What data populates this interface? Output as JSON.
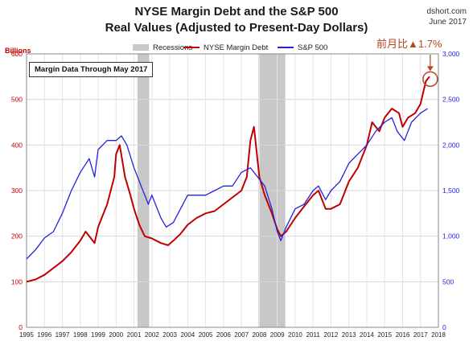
{
  "header": {
    "title_line1": "NYSE Margin Debt and the S&P 500",
    "title_line2": "Real Values (Adjusted to Present-Day Dollars)",
    "source": "dshort.com",
    "date": "June 2017"
  },
  "chart_data": {
    "type": "line",
    "title": "NYSE Margin Debt and the S&P 500",
    "subtitle": "Real Values (Adjusted to Present-Day Dollars)",
    "left_axis_label": "Billions",
    "left_ylim": [
      0,
      600
    ],
    "left_ticks": [
      0,
      100,
      200,
      300,
      400,
      500,
      600
    ],
    "right_ylim": [
      0,
      3000
    ],
    "right_ticks": [
      0,
      500,
      1000,
      1500,
      2000,
      2500,
      3000
    ],
    "right_tick_labels": [
      "0",
      "500",
      "1,000",
      "1,500",
      "2,000",
      "2,500",
      "3,000"
    ],
    "xlim": [
      1995,
      2018
    ],
    "x_ticks": [
      1995,
      1996,
      1997,
      1998,
      1999,
      2000,
      2001,
      2002,
      2003,
      2004,
      2005,
      2006,
      2007,
      2008,
      2009,
      2010,
      2011,
      2012,
      2013,
      2014,
      2015,
      2016,
      2017,
      2018
    ],
    "recessions": [
      [
        2001.2,
        2001.85
      ],
      [
        2007.95,
        2009.45
      ]
    ],
    "grid": true,
    "legend_position": "top",
    "legend": [
      {
        "label": "Recessions",
        "color": "#c8c8c8"
      },
      {
        "label": "NYSE Margin Debt",
        "color": "#c00000"
      },
      {
        "label": "S&P 500",
        "color": "#2222dd"
      }
    ],
    "inset_label": "Margin Data Through May 2017",
    "annotation": "前月比▲1.7%",
    "series": [
      {
        "name": "NYSE Margin Debt",
        "axis": "left",
        "color": "#c00000",
        "x": [
          1995.0,
          1995.5,
          1996.0,
          1996.5,
          1997.0,
          1997.5,
          1998.0,
          1998.3,
          1998.8,
          1999.0,
          1999.5,
          1999.9,
          2000.0,
          2000.2,
          2000.5,
          2000.8,
          2001.0,
          2001.3,
          2001.6,
          2002.0,
          2002.5,
          2002.9,
          2003.2,
          2003.6,
          2004.0,
          2004.5,
          2005.0,
          2005.5,
          2006.0,
          2006.5,
          2007.0,
          2007.3,
          2007.5,
          2007.7,
          2008.0,
          2008.3,
          2008.7,
          2009.0,
          2009.2,
          2009.5,
          2010.0,
          2010.5,
          2011.0,
          2011.3,
          2011.7,
          2012.0,
          2012.5,
          2013.0,
          2013.5,
          2014.0,
          2014.3,
          2014.7,
          2015.0,
          2015.4,
          2015.8,
          2016.0,
          2016.3,
          2016.7,
          2017.0,
          2017.3,
          2017.5
        ],
        "y": [
          100,
          105,
          115,
          130,
          145,
          165,
          190,
          210,
          185,
          220,
          270,
          330,
          380,
          400,
          330,
          290,
          260,
          225,
          200,
          195,
          185,
          180,
          190,
          205,
          225,
          240,
          250,
          255,
          270,
          285,
          300,
          330,
          410,
          440,
          330,
          290,
          250,
          215,
          200,
          210,
          240,
          265,
          290,
          300,
          260,
          260,
          270,
          320,
          350,
          400,
          450,
          430,
          460,
          480,
          470,
          440,
          460,
          470,
          490,
          540,
          550
        ]
      },
      {
        "name": "S&P 500",
        "axis": "right",
        "color": "#2222dd",
        "x": [
          1995.0,
          1995.5,
          1996.0,
          1996.5,
          1997.0,
          1997.5,
          1998.0,
          1998.5,
          1998.8,
          1999.0,
          1999.5,
          2000.0,
          2000.3,
          2000.6,
          2001.0,
          2001.5,
          2001.8,
          2002.0,
          2002.5,
          2002.8,
          2003.2,
          2003.6,
          2004.0,
          2004.5,
          2005.0,
          2005.5,
          2006.0,
          2006.5,
          2007.0,
          2007.5,
          2007.9,
          2008.3,
          2008.7,
          2009.0,
          2009.2,
          2009.5,
          2010.0,
          2010.5,
          2011.0,
          2011.3,
          2011.7,
          2012.0,
          2012.5,
          2013.0,
          2013.5,
          2014.0,
          2014.5,
          2015.0,
          2015.4,
          2015.7,
          2016.1,
          2016.5,
          2017.0,
          2017.4
        ],
        "y": [
          750,
          850,
          980,
          1050,
          1250,
          1500,
          1700,
          1850,
          1650,
          1950,
          2050,
          2050,
          2100,
          2000,
          1750,
          1500,
          1350,
          1450,
          1200,
          1100,
          1150,
          1300,
          1450,
          1450,
          1450,
          1500,
          1550,
          1550,
          1700,
          1750,
          1650,
          1550,
          1300,
          1050,
          950,
          1100,
          1300,
          1350,
          1500,
          1550,
          1400,
          1500,
          1600,
          1800,
          1900,
          2000,
          2150,
          2250,
          2300,
          2150,
          2050,
          2250,
          2350,
          2400
        ]
      }
    ]
  }
}
